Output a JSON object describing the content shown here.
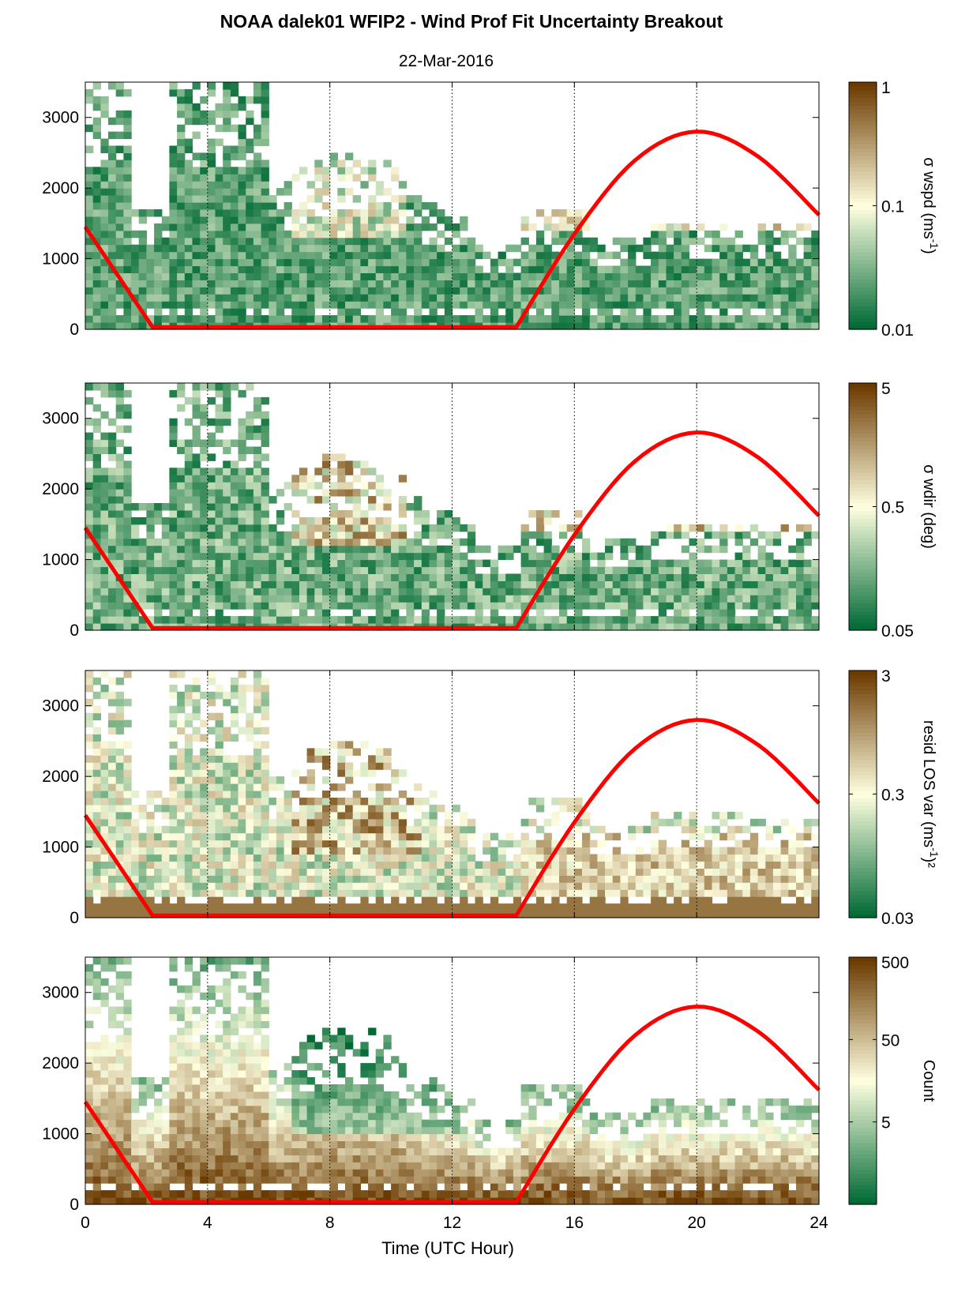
{
  "figure": {
    "title": "NOAA dalek01 WFIP2 - Wind Prof Fit Uncertainty Breakout",
    "subtitle": "22-Mar-2016",
    "xlabel": "Time (UTC Hour)"
  },
  "colors": {
    "low": "#006a35",
    "mid": "#ffffe0",
    "high": "#6b3a00",
    "sun_curve": "#ff0000"
  },
  "chart_data": [
    {
      "type": "heatmap",
      "x_range": [
        0,
        24
      ],
      "y_range": [
        0,
        3500
      ],
      "xticks": [
        0,
        4,
        8,
        12,
        16,
        20,
        24
      ],
      "yticks": [
        0,
        1000,
        2000,
        3000
      ],
      "vertical_dotted_gridlines_x": [
        4,
        8,
        12,
        16,
        20
      ],
      "colorbar": {
        "label": "σ wspd (ms",
        "label_sup": "-1",
        "label_end": ")",
        "scale": "log",
        "ticks": [
          "0.01",
          "0.1",
          "1"
        ],
        "range": [
          0.01,
          1
        ]
      },
      "sun_elevation_curve": {
        "x": [
          0,
          2.2,
          14.1,
          16,
          18,
          20,
          22,
          24
        ],
        "y": [
          1450,
          30,
          30,
          1350,
          2400,
          2800,
          2450,
          1620
        ]
      }
    },
    {
      "type": "heatmap",
      "x_range": [
        0,
        24
      ],
      "y_range": [
        0,
        3500
      ],
      "xticks": [
        0,
        4,
        8,
        12,
        16,
        20,
        24
      ],
      "yticks": [
        0,
        1000,
        2000,
        3000
      ],
      "vertical_dotted_gridlines_x": [
        4,
        8,
        12,
        16,
        20
      ],
      "colorbar": {
        "label": "σ wdir (deg)",
        "label_sup": "",
        "label_end": "",
        "scale": "log",
        "ticks": [
          "0.05",
          "0.5",
          "5"
        ],
        "range": [
          0.05,
          5
        ]
      },
      "sun_elevation_curve": {
        "x": [
          0,
          2.2,
          14.1,
          16,
          18,
          20,
          22,
          24
        ],
        "y": [
          1450,
          30,
          30,
          1350,
          2400,
          2800,
          2450,
          1620
        ]
      }
    },
    {
      "type": "heatmap",
      "x_range": [
        0,
        24
      ],
      "y_range": [
        0,
        3500
      ],
      "xticks": [
        0,
        4,
        8,
        12,
        16,
        20,
        24
      ],
      "yticks": [
        0,
        1000,
        2000,
        3000
      ],
      "vertical_dotted_gridlines_x": [
        4,
        8,
        12,
        16,
        20
      ],
      "colorbar": {
        "label": "resid LOS var (ms",
        "label_sup": "-1",
        "label_end": ")²",
        "scale": "log",
        "ticks": [
          "0.03",
          "0.3",
          "3"
        ],
        "range": [
          0.03,
          3
        ]
      },
      "sun_elevation_curve": {
        "x": [
          0,
          2.2,
          14.1,
          16,
          18,
          20,
          22,
          24
        ],
        "y": [
          1450,
          30,
          30,
          1350,
          2400,
          2800,
          2450,
          1620
        ]
      }
    },
    {
      "type": "heatmap",
      "x_range": [
        0,
        24
      ],
      "y_range": [
        0,
        3500
      ],
      "xticks": [
        0,
        4,
        8,
        12,
        16,
        20,
        24
      ],
      "yticks": [
        0,
        1000,
        2000,
        3000
      ],
      "vertical_dotted_gridlines_x": [
        4,
        8,
        12,
        16,
        20
      ],
      "colorbar": {
        "label": "Count",
        "label_sup": "",
        "label_end": "",
        "scale": "log",
        "ticks": [
          "5",
          "50",
          "500"
        ],
        "range": [
          0.5,
          500
        ]
      },
      "sun_elevation_curve": {
        "x": [
          0,
          2.2,
          14.1,
          16,
          18,
          20,
          22,
          24
        ],
        "y": [
          1450,
          30,
          30,
          1350,
          2400,
          2800,
          2450,
          1620
        ]
      }
    }
  ]
}
